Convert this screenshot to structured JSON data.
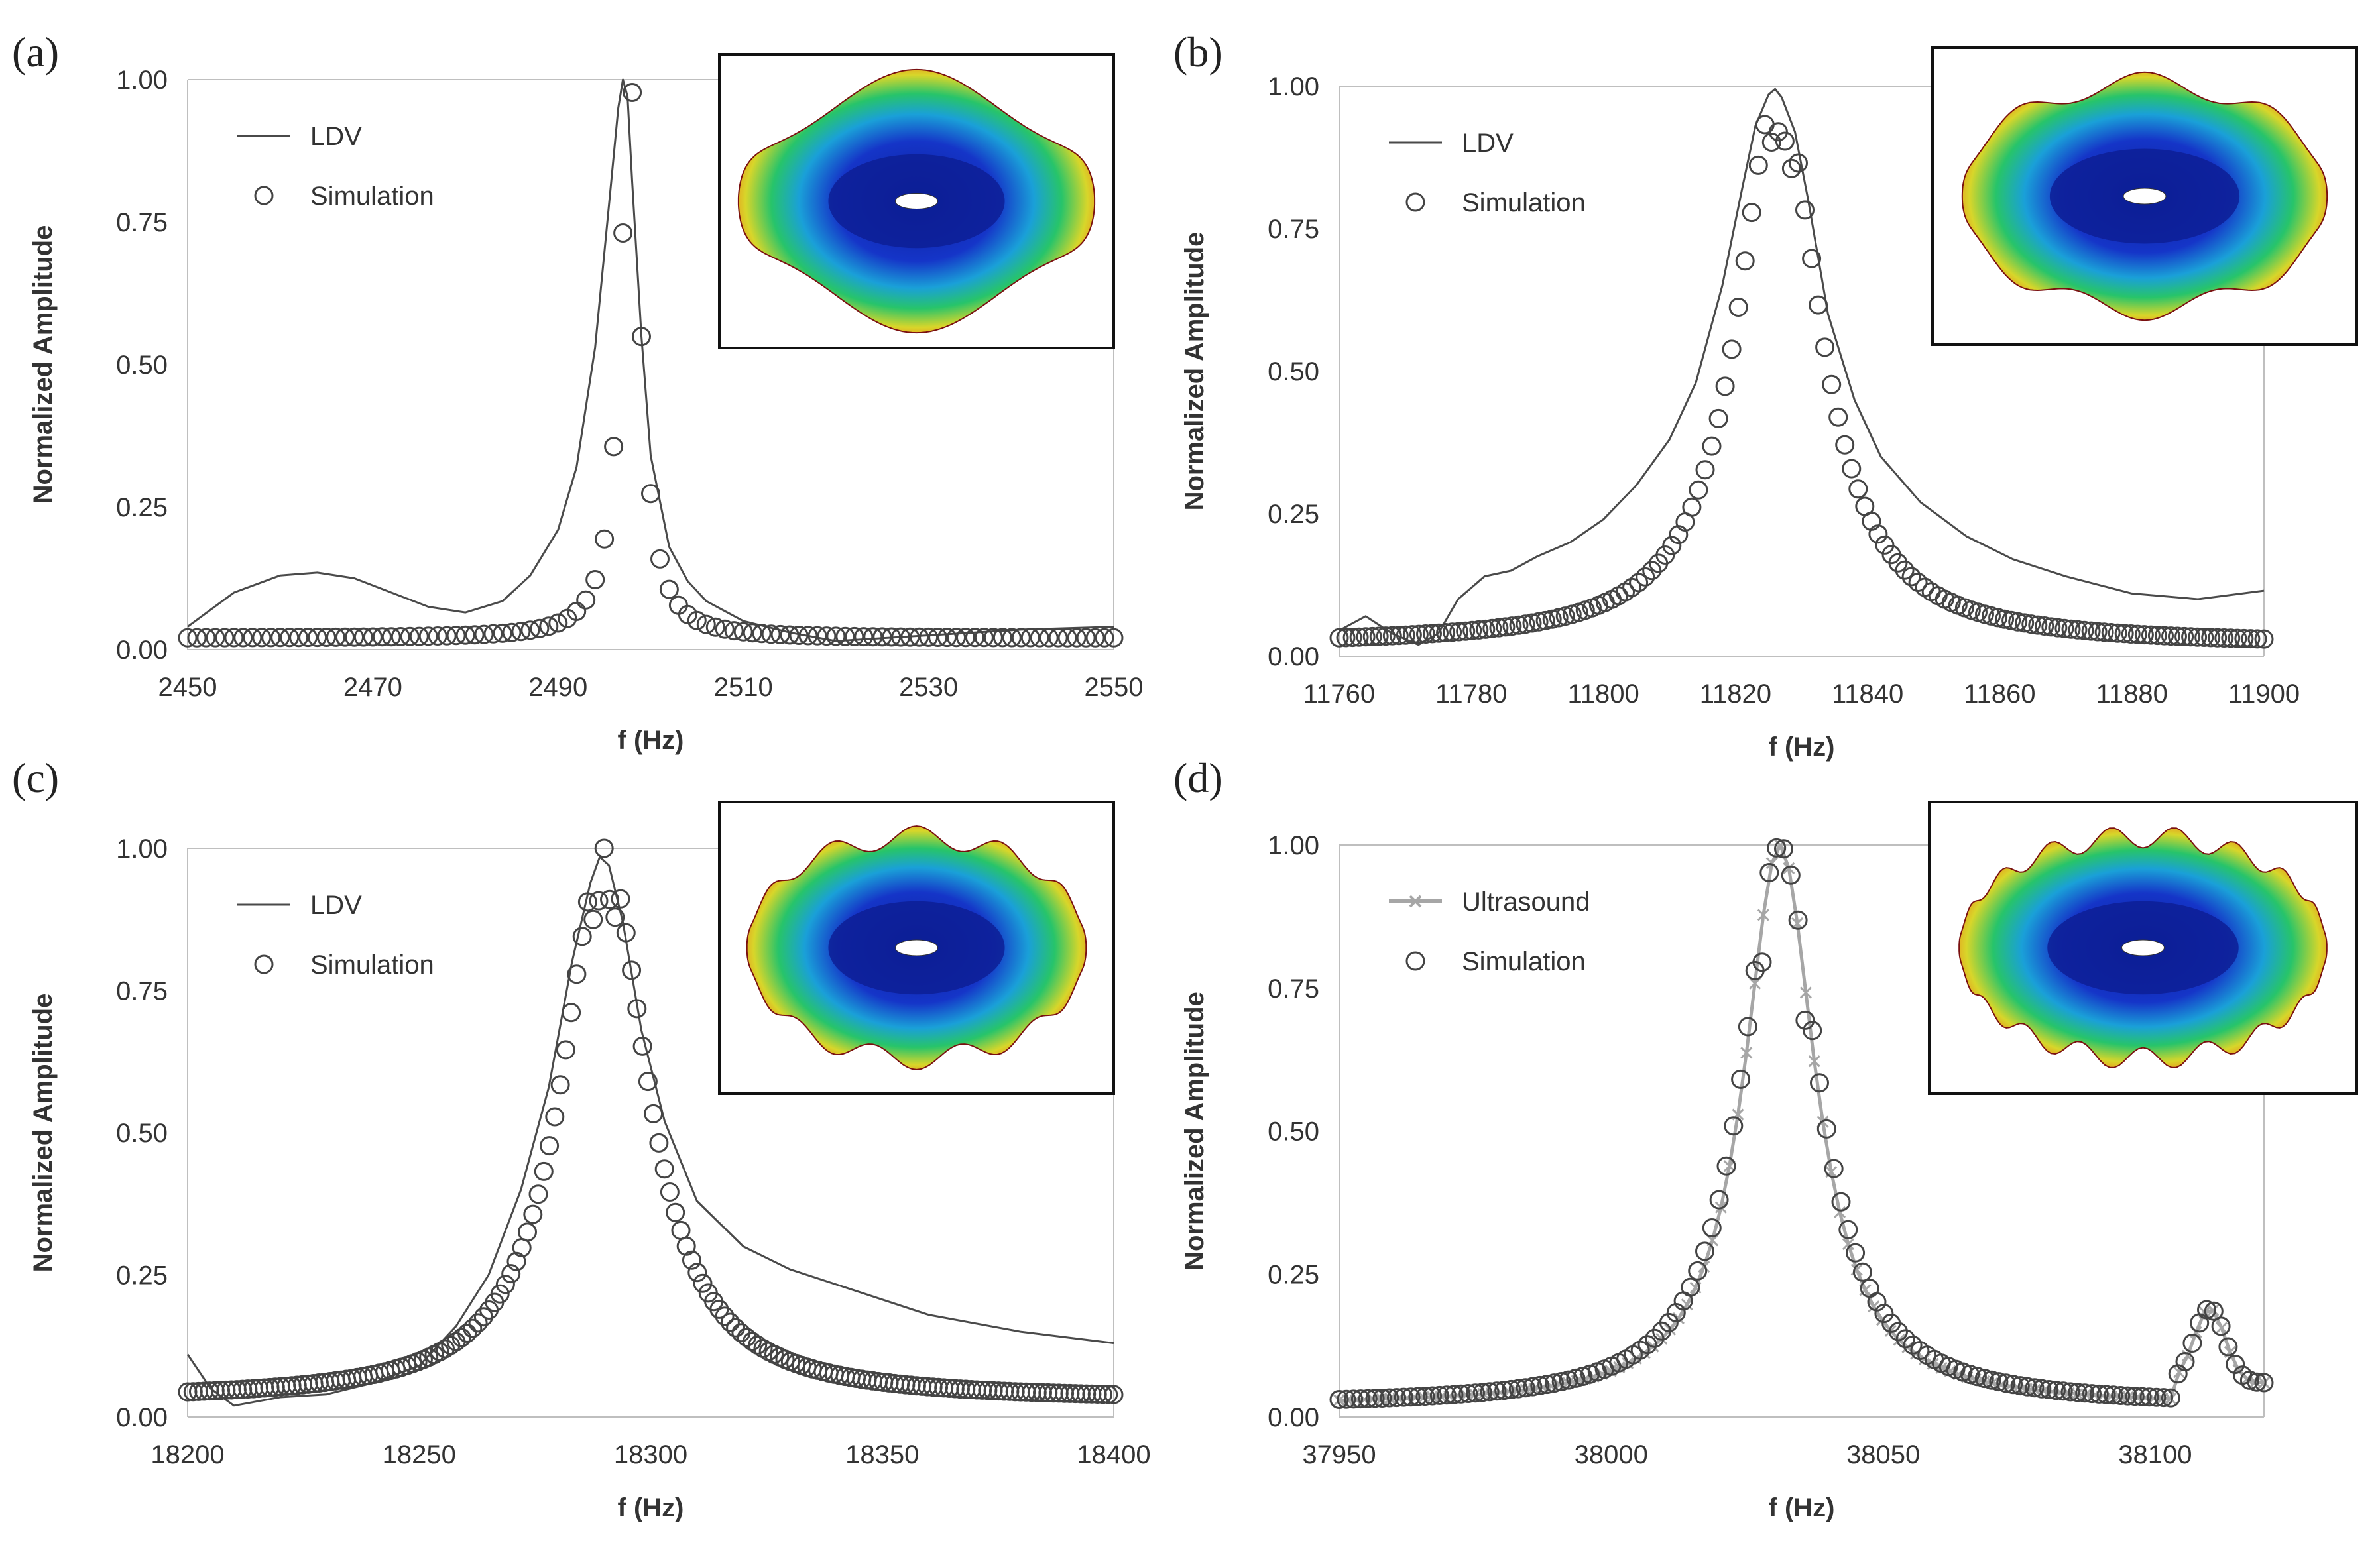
{
  "figure": {
    "colors": {
      "ldv": "#4a4a4a",
      "simulation": "#444444",
      "ultrasound": "#a6a6a6",
      "axis": "#bfbfbf"
    }
  },
  "chart_data": [
    {
      "type": "line",
      "panel_label": "(a)",
      "xlabel": "f (Hz)",
      "ylabel": "Normalized Amplitude",
      "xlim": [
        2450,
        2550
      ],
      "ylim": [
        0,
        1
      ],
      "xticks": [
        "2450",
        "2470",
        "2490",
        "2510",
        "2530",
        "2550"
      ],
      "yticks": [
        "0.00",
        "0.25",
        "0.50",
        "0.75",
        "1.00"
      ],
      "legend": [
        "LDV",
        "Simulation"
      ],
      "inset": {
        "mode_shape": "wavy-ring",
        "lobes": 2,
        "icon": "mode-shape-icon"
      },
      "series": [
        {
          "name": "LDV",
          "style": "line",
          "x": [
            2450,
            2455,
            2460,
            2464,
            2468,
            2472,
            2476,
            2480,
            2484,
            2487,
            2490,
            2492,
            2494,
            2495.5,
            2496.5,
            2497,
            2497.5,
            2498,
            2499,
            2500,
            2502,
            2504,
            2506,
            2510,
            2515,
            2520,
            2530,
            2540,
            2550
          ],
          "y": [
            0.04,
            0.1,
            0.13,
            0.135,
            0.125,
            0.1,
            0.075,
            0.065,
            0.085,
            0.13,
            0.21,
            0.32,
            0.53,
            0.78,
            0.95,
            1.0,
            0.97,
            0.82,
            0.55,
            0.34,
            0.18,
            0.12,
            0.085,
            0.05,
            0.03,
            0.015,
            0.025,
            0.035,
            0.04
          ]
        },
        {
          "name": "Simulation",
          "style": "markers",
          "model": "lorentzian",
          "f0": 2497.8,
          "gamma": 1.3,
          "baseline": 0.02,
          "range": [
            2450,
            2550
          ],
          "n": 101
        }
      ]
    },
    {
      "type": "line",
      "panel_label": "(b)",
      "xlabel": "f (Hz)",
      "ylabel": "Normalized Amplitude",
      "xlim": [
        11760,
        11900
      ],
      "ylim": [
        0,
        1
      ],
      "xticks": [
        "11760",
        "11780",
        "11800",
        "11820",
        "11840",
        "11860",
        "11880",
        "11900"
      ],
      "yticks": [
        "0.00",
        "0.25",
        "0.50",
        "0.75",
        "1.00"
      ],
      "legend": [
        "LDV",
        "Simulation"
      ],
      "inset": {
        "mode_shape": "wavy-ring",
        "lobes": 4,
        "icon": "mode-shape-icon"
      },
      "series": [
        {
          "name": "LDV",
          "style": "line",
          "x": [
            11760,
            11764,
            11768,
            11772,
            11775,
            11778,
            11782,
            11786,
            11790,
            11795,
            11800,
            11805,
            11810,
            11814,
            11818,
            11821,
            11823,
            11825,
            11826,
            11827,
            11829,
            11831,
            11834,
            11838,
            11842,
            11848,
            11855,
            11862,
            11870,
            11880,
            11890,
            11900
          ],
          "y": [
            0.045,
            0.07,
            0.04,
            0.02,
            0.04,
            0.1,
            0.14,
            0.15,
            0.175,
            0.2,
            0.24,
            0.3,
            0.38,
            0.48,
            0.65,
            0.82,
            0.93,
            0.985,
            0.995,
            0.98,
            0.92,
            0.8,
            0.6,
            0.45,
            0.35,
            0.27,
            0.21,
            0.17,
            0.14,
            0.11,
            0.1,
            0.115
          ]
        },
        {
          "name": "Simulation",
          "style": "markers",
          "model": "lorentzian",
          "f0": 11826.5,
          "gamma": 7.5,
          "baseline": 0.02,
          "range": [
            11760,
            11900
          ],
          "n": 140,
          "dip_at": [
            11826,
            11828
          ]
        }
      ]
    },
    {
      "type": "line",
      "panel_label": "(c)",
      "xlabel": "f (Hz)",
      "ylabel": "Normalized Amplitude",
      "xlim": [
        18200,
        18400
      ],
      "ylim": [
        0,
        1
      ],
      "xticks": [
        "18200",
        "18250",
        "18300",
        "18350",
        "18400"
      ],
      "yticks": [
        "0.00",
        "0.25",
        "0.50",
        "0.75",
        "1.00"
      ],
      "legend": [
        "LDV",
        "Simulation"
      ],
      "inset": {
        "mode_shape": "wavy-ring",
        "lobes": 6,
        "icon": "mode-shape-icon"
      },
      "series": [
        {
          "name": "LDV",
          "style": "line",
          "x": [
            18200,
            18205,
            18210,
            18220,
            18230,
            18240,
            18250,
            18258,
            18265,
            18272,
            18278,
            18283,
            18287,
            18289,
            18291,
            18294,
            18298,
            18303,
            18310,
            18320,
            18330,
            18345,
            18360,
            18380,
            18400
          ],
          "y": [
            0.11,
            0.05,
            0.02,
            0.035,
            0.04,
            0.06,
            0.09,
            0.16,
            0.25,
            0.4,
            0.58,
            0.8,
            0.94,
            0.985,
            0.97,
            0.87,
            0.68,
            0.52,
            0.38,
            0.3,
            0.26,
            0.22,
            0.18,
            0.15,
            0.13
          ]
        },
        {
          "name": "Simulation",
          "style": "markers",
          "model": "lorentzian",
          "f0": 18290,
          "gamma": 11,
          "baseline": 0.03,
          "range": [
            18200,
            18400
          ],
          "n": 170,
          "dip_at": [
            18288,
            18292
          ]
        }
      ]
    },
    {
      "type": "line",
      "panel_label": "(d)",
      "xlabel": "f (Hz)",
      "ylabel": "Normalized Amplitude",
      "xlim": [
        37950,
        38120
      ],
      "ylim": [
        0,
        1
      ],
      "xticks": [
        "37950",
        "38000",
        "38050",
        "38100"
      ],
      "yticks": [
        "0.00",
        "0.25",
        "0.50",
        "0.75",
        "1.00"
      ],
      "legend": [
        "Ultrasound",
        "Simulation"
      ],
      "inset": {
        "mode_shape": "wavy-ring",
        "lobes": 9,
        "icon": "mode-shape-icon"
      },
      "series": [
        {
          "name": "Ultrasound",
          "style": "line-x-markers",
          "model": "lorentzian",
          "f0": 38031,
          "gamma": 8,
          "baseline": 0.02,
          "range": [
            37950,
            38120
          ],
          "n": 110,
          "tail_bump": [
            38110,
            0.13
          ]
        },
        {
          "name": "Simulation",
          "style": "markers",
          "model": "lorentzian",
          "f0": 38031,
          "gamma": 8.5,
          "baseline": 0.02,
          "range": [
            37950,
            38120
          ],
          "n": 130,
          "tail_bump": [
            38110,
            0.13
          ],
          "dip_at": [
            38028,
            38036
          ]
        }
      ]
    }
  ]
}
